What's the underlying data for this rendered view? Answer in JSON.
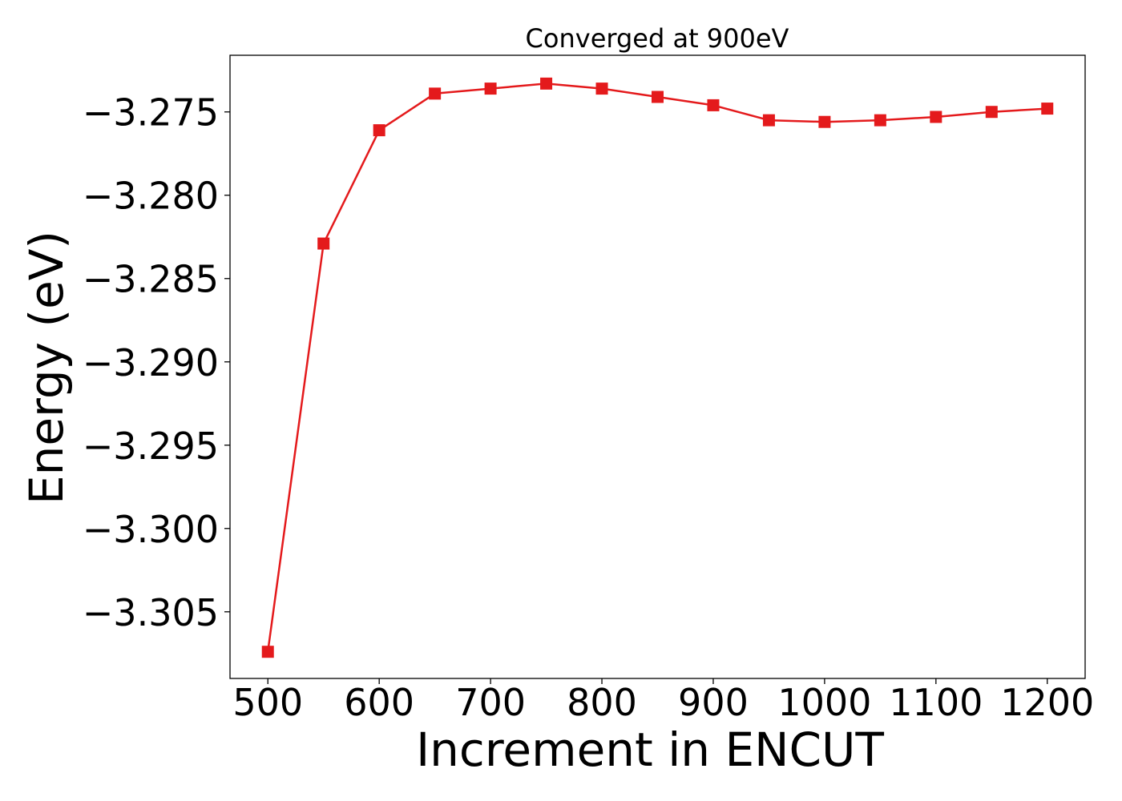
{
  "chart_data": {
    "type": "line",
    "title": "Converged at 900eV",
    "xlabel": "Increment in ENCUT",
    "ylabel": "Energy (eV)",
    "x": [
      500,
      550,
      600,
      650,
      700,
      750,
      800,
      850,
      900,
      950,
      1000,
      1050,
      1100,
      1150,
      1200
    ],
    "series": [
      {
        "values": [
          -3.3074,
          -3.2829,
          -3.2761,
          -3.2739,
          -3.2736,
          -3.2733,
          -3.2736,
          -3.2741,
          -3.2746,
          -3.2755,
          -3.2756,
          -3.2755,
          -3.2753,
          -3.275,
          -3.2748
        ],
        "color": "#e41a1c",
        "marker": "square"
      }
    ],
    "xlim": [
      466,
      1234
    ],
    "ylim": [
      -3.309,
      -3.2716
    ],
    "xticks": [
      500,
      600,
      700,
      800,
      900,
      1000,
      1100,
      1200
    ],
    "xtick_labels": [
      "500",
      "600",
      "700",
      "800",
      "900",
      "1000",
      "1100",
      "1200"
    ],
    "yticks": [
      -3.305,
      -3.3,
      -3.295,
      -3.29,
      -3.285,
      -3.28,
      -3.275
    ],
    "ytick_labels": [
      "−3.305",
      "−3.300",
      "−3.295",
      "−3.290",
      "−3.285",
      "−3.280",
      "−3.275"
    ],
    "grid": false,
    "legend": false
  }
}
